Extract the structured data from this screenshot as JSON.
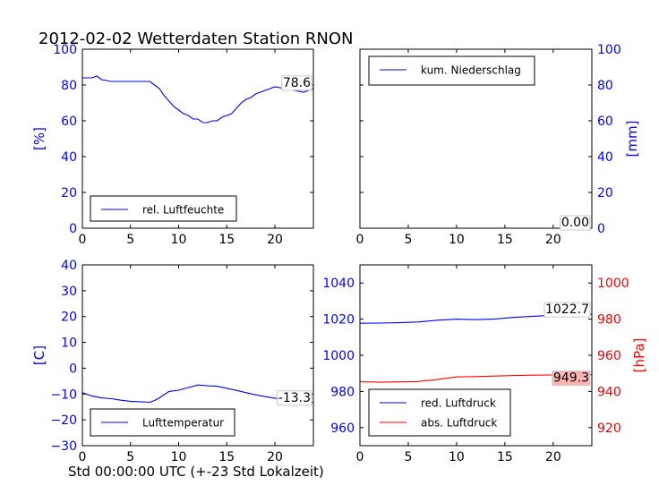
{
  "title": "2012-02-02 Wetterdaten Station RNON",
  "xlabel_common": "Std 00:00:00 UTC (+-23 Std Lokalzeit)",
  "colors": {
    "blue": "#0000ff",
    "red": "#ff0000",
    "black": "#000000",
    "highlight": "#ffb3b3"
  },
  "chart_data": [
    {
      "id": "humidity",
      "type": "line",
      "ylabel": "[%]",
      "xlim": [
        0,
        24
      ],
      "ylim": [
        0,
        100
      ],
      "x_ticks": [
        "0",
        "5",
        "10",
        "15",
        "20"
      ],
      "y_ticks": [
        "0",
        "20",
        "40",
        "60",
        "80",
        "100"
      ],
      "legend": "rel. Luftfeuchte",
      "legend_position": "lower-left",
      "last_value_label": "78.6",
      "series": [
        {
          "name": "rel. Luftfeuchte",
          "color": "#0000ff",
          "x": [
            0,
            1,
            1.5,
            2,
            3,
            4,
            5,
            6,
            7,
            7.5,
            8,
            8.5,
            9,
            9.5,
            10,
            10.5,
            11,
            11.5,
            12,
            12.5,
            13,
            13.5,
            14,
            14.5,
            15,
            15.5,
            16,
            16.5,
            17,
            17.5,
            18,
            19,
            20,
            21,
            22,
            23,
            24
          ],
          "y": [
            84,
            84,
            85,
            83,
            82,
            82,
            82,
            82,
            82,
            80,
            78,
            74,
            71,
            68,
            66,
            64,
            63,
            61,
            61,
            59,
            59,
            60,
            60,
            62,
            63,
            64,
            67,
            70,
            72,
            73,
            75,
            77,
            79,
            78,
            77,
            76,
            78
          ]
        }
      ]
    },
    {
      "id": "precipitation",
      "type": "line",
      "ylabel": "[mm]",
      "xlim": [
        0,
        24
      ],
      "ylim": [
        0,
        100
      ],
      "x_ticks": [
        "0",
        "5",
        "10",
        "15",
        "20"
      ],
      "y_ticks": [
        "0",
        "20",
        "40",
        "60",
        "80",
        "100"
      ],
      "legend": "kum. Niederschlag",
      "legend_position": "upper-left",
      "last_value_label": "0.00",
      "series": [
        {
          "name": "kum. Niederschlag",
          "color": "#0000ff",
          "x": [
            0,
            24
          ],
          "y": [
            0,
            0
          ]
        }
      ]
    },
    {
      "id": "temperature",
      "type": "line",
      "ylabel": "[C]",
      "xlim": [
        0,
        24
      ],
      "ylim": [
        -30,
        40
      ],
      "x_ticks": [
        "0",
        "5",
        "10",
        "15",
        "20"
      ],
      "y_ticks": [
        "−30",
        "−20",
        "−10",
        "0",
        "10",
        "20",
        "30",
        "40"
      ],
      "legend": "Lufttemperatur",
      "legend_position": "lower-left",
      "last_value_label": "-13.3",
      "series": [
        {
          "name": "Lufttemperatur",
          "color": "#0000ff",
          "x": [
            0,
            1,
            2,
            3,
            4,
            5,
            6,
            7,
            7.5,
            8,
            9,
            10,
            11,
            12,
            13,
            14,
            15,
            16,
            17,
            18,
            19,
            20,
            21,
            22,
            23,
            24
          ],
          "y": [
            -9.5,
            -10.8,
            -11.5,
            -11.8,
            -12.4,
            -12.8,
            -13.0,
            -13.2,
            -12.5,
            -11.5,
            -9.0,
            -8.5,
            -7.5,
            -6.5,
            -6.8,
            -7.0,
            -7.8,
            -8.6,
            -9.5,
            -10.3,
            -11.0,
            -11.6,
            -12.2,
            -12.6,
            -13.0,
            -13.3
          ]
        }
      ]
    },
    {
      "id": "pressure",
      "type": "line",
      "xlim": [
        0,
        24
      ],
      "ylim_left": [
        950,
        1050
      ],
      "ylim_right": [
        910,
        1010
      ],
      "ylabel_right": "[hPa]",
      "x_ticks": [
        "0",
        "5",
        "10",
        "15",
        "20"
      ],
      "y_ticks_left": [
        "960",
        "980",
        "1000",
        "1020",
        "1040"
      ],
      "y_ticks_right": [
        "920",
        "940",
        "960",
        "980",
        "1000"
      ],
      "legend_position": "lower-left",
      "series": [
        {
          "name": "red. Luftdruck",
          "color": "#0000ff",
          "axis": "left",
          "last_value_label": "1022.7",
          "x": [
            0,
            2,
            4,
            6,
            8,
            10,
            12,
            14,
            16,
            18,
            20,
            22,
            24
          ],
          "y": [
            1017.7,
            1017.8,
            1018.0,
            1018.4,
            1019.4,
            1020.0,
            1019.7,
            1020.1,
            1021.0,
            1021.6,
            1022.2,
            1022.5,
            1022.7
          ]
        },
        {
          "name": "abs. Luftdruck",
          "color": "#ff0000",
          "axis": "right",
          "last_value_label": "949.3",
          "x": [
            0,
            2,
            4,
            6,
            8,
            10,
            12,
            14,
            16,
            18,
            20,
            22,
            24
          ],
          "y": [
            945.4,
            945.1,
            945.3,
            945.5,
            946.6,
            948.0,
            948.2,
            948.5,
            948.8,
            949.0,
            949.1,
            949.2,
            949.3
          ]
        }
      ]
    }
  ]
}
